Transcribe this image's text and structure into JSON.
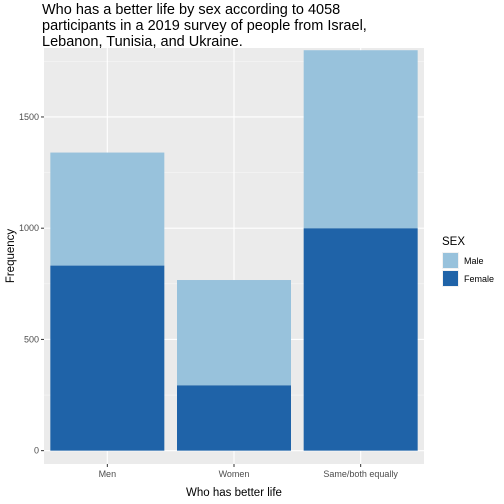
{
  "chart_data": {
    "type": "bar",
    "stacked": true,
    "title_lines": [
      "Who has a better life by sex according to 4058",
      "participants in a 2019 survey of people from Israel,",
      "Lebanon, Tunisia, and Ukraine."
    ],
    "xlabel": "Who has better life",
    "ylabel": "Frequency",
    "categories": [
      "Men",
      "Women",
      "Same/both equally"
    ],
    "series": [
      {
        "name": "Female",
        "values": [
          832,
          294,
          1000
        ],
        "color": "#1f63a8"
      },
      {
        "name": "Male",
        "values": [
          508,
          473,
          800
        ],
        "color": "#98c2dc"
      }
    ],
    "ylim": [
      -60,
      1810
    ],
    "yticks": [
      0,
      500,
      1000,
      1500
    ],
    "grid": true,
    "panel_background": "#ebebeb",
    "legend": {
      "title": "SEX",
      "placement": "right",
      "entries": [
        {
          "label": "Male",
          "color": "#98c2dc"
        },
        {
          "label": "Female",
          "color": "#1f63a8"
        }
      ]
    }
  }
}
